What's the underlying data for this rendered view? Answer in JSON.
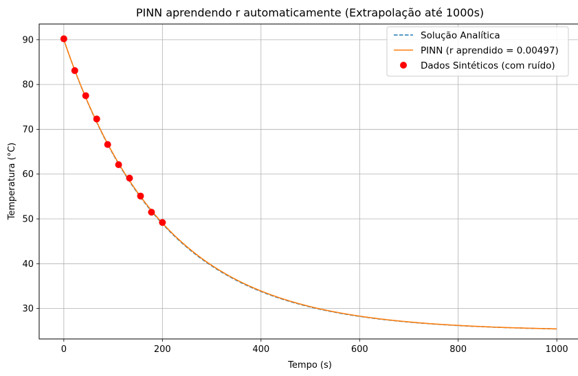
{
  "chart_data": {
    "type": "line",
    "title": "PINN aprendendo r automaticamente (Extrapolação até 1000s)",
    "xlabel": "Tempo (s)",
    "ylabel": "Temperatura (°C)",
    "xlim": [
      -50,
      1050
    ],
    "ylim": [
      23.2,
      93.5
    ],
    "xticks": [
      0,
      200,
      400,
      600,
      800,
      1000
    ],
    "yticks": [
      30,
      40,
      50,
      60,
      70,
      80,
      90
    ],
    "grid": true,
    "legend_position": "top-right",
    "model": {
      "T_env": 25,
      "T0": 90,
      "r_analytic": 0.005,
      "r_pinn": 0.00497,
      "t_min": 0,
      "t_max": 1000
    },
    "series": [
      {
        "name": "Solução Analítica",
        "kind": "line",
        "style": "dashed",
        "color": "#1f77b4",
        "r": 0.005
      },
      {
        "name": "PINN (r aprendido = 0.00497)",
        "kind": "line",
        "style": "solid",
        "color": "#ff7f0e",
        "r": 0.00497
      },
      {
        "name": "Dados Sintéticos (com ruído)",
        "kind": "scatter",
        "color": "#ff0000",
        "x": [
          0,
          22.2,
          44.4,
          66.7,
          88.9,
          111.1,
          133.3,
          155.6,
          177.8,
          200
        ],
        "y": [
          90.2,
          83.1,
          77.5,
          72.3,
          66.6,
          62.1,
          59.1,
          55.1,
          51.5,
          49.2
        ]
      }
    ]
  }
}
